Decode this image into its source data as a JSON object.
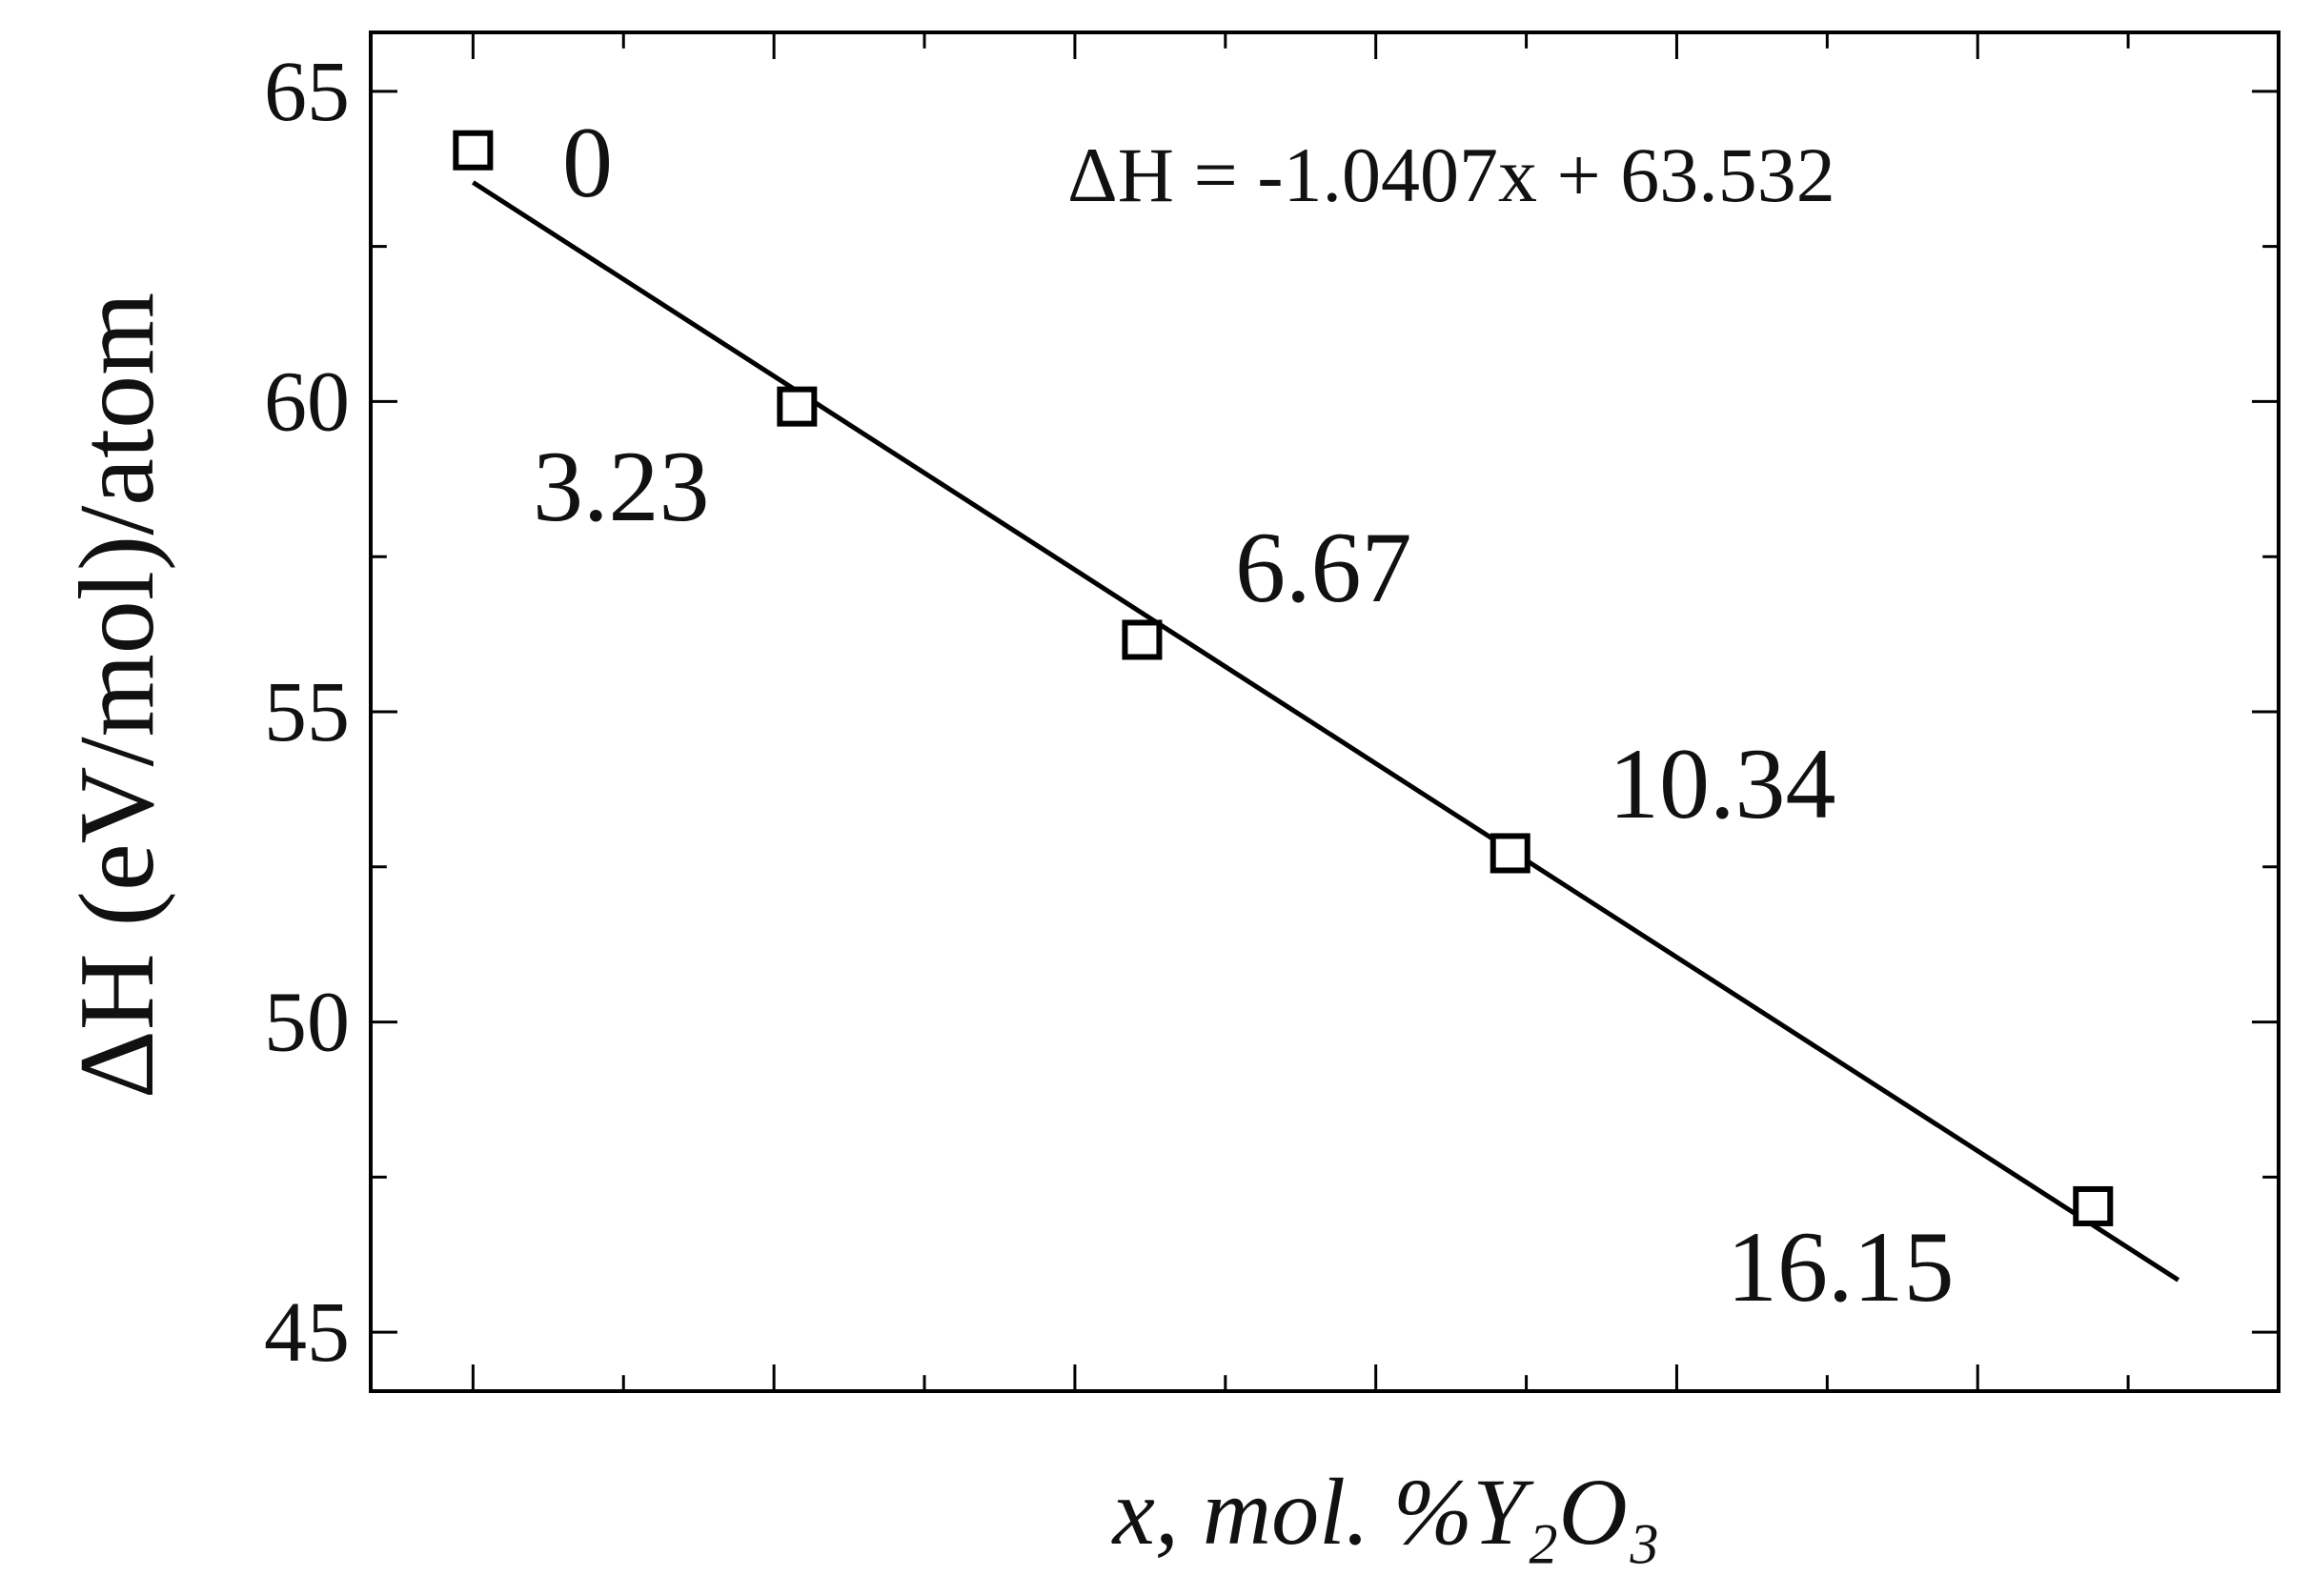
{
  "chart_data": {
    "type": "scatter",
    "xlabel": "x, mol. %Y₂O₃",
    "ylabel": "ΔH (eV/mol)/atom",
    "annotation": "ΔH = -1.0407x + 63.532",
    "xlim": [
      -1.02,
      18.0
    ],
    "ylim": [
      44.05,
      65.95
    ],
    "xticks": [
      0,
      1.5,
      3,
      4.5,
      6,
      7.5,
      9,
      10.5,
      12,
      13.5,
      15,
      16.5
    ],
    "yticks": [
      45,
      50,
      55,
      60,
      65
    ],
    "yminorticks": [
      47.5,
      52.5,
      57.5,
      62.5
    ],
    "series": [
      {
        "name": "data",
        "color": "#000000",
        "x": [
          0,
          3.23,
          6.67,
          10.34,
          16.15
        ],
        "values": [
          64.05,
          59.92,
          56.16,
          52.72,
          47.03
        ]
      },
      {
        "name": "fit",
        "color": "#000000",
        "x": [
          0,
          17.0
        ],
        "values": [
          63.532,
          45.84
        ]
      }
    ]
  }
}
